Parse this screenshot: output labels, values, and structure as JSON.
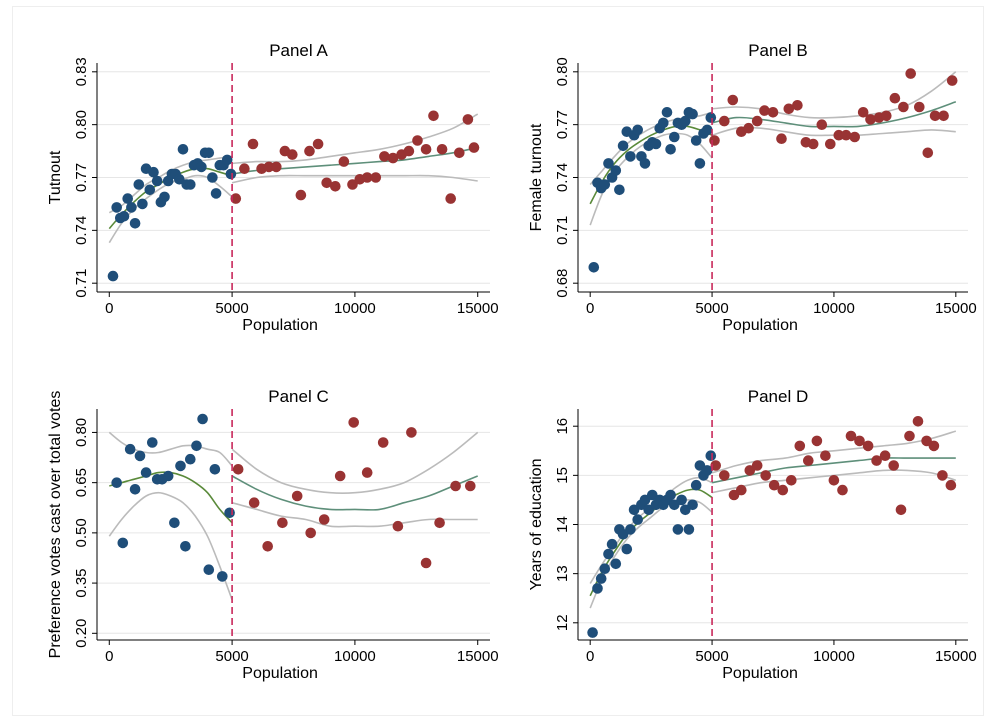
{
  "colors": {
    "below": "#1f4e79",
    "above": "#993333",
    "fit": "#5a8a3a",
    "fit_right": "#5e8f7a",
    "ci": "#bbbbbb",
    "cutoff": "#c8285a",
    "grid": "#e6e6e6"
  },
  "chart_data": [
    {
      "type": "scatter",
      "title": "Panel A",
      "xlabel": "Population",
      "ylabel": "Tutnout",
      "xlim": [
        -500,
        15500
      ],
      "ylim": [
        0.705,
        0.835
      ],
      "xticks": [
        0,
        5000,
        10000,
        15000
      ],
      "xtick_labels": [
        "0",
        "5000",
        "10000",
        "15000"
      ],
      "yticks": [
        0.71,
        0.74,
        0.77,
        0.8,
        0.83
      ],
      "ytick_labels": [
        "0.71",
        "0.74",
        "0.77",
        "0.80",
        "0.83"
      ],
      "cutoff": 5000,
      "grid": true,
      "series": [
        {
          "group": "below",
          "x": [
            150,
            300,
            450,
            600,
            750,
            900,
            1050,
            1200,
            1350,
            1500,
            1650,
            1800,
            1950,
            2100,
            2250,
            2400,
            2550,
            2700,
            2850,
            3000,
            3150,
            3300,
            3450,
            3600,
            3750,
            3900,
            4050,
            4200,
            4350,
            4500,
            4650,
            4800,
            4950
          ],
          "y": [
            0.714,
            0.753,
            0.747,
            0.748,
            0.758,
            0.753,
            0.744,
            0.766,
            0.755,
            0.775,
            0.763,
            0.773,
            0.768,
            0.756,
            0.759,
            0.768,
            0.772,
            0.772,
            0.769,
            0.786,
            0.766,
            0.766,
            0.777,
            0.778,
            0.776,
            0.784,
            0.784,
            0.77,
            0.761,
            0.777,
            0.777,
            0.78,
            0.772
          ]
        },
        {
          "group": "above",
          "x": [
            5150,
            5500,
            5850,
            6200,
            6500,
            6800,
            7150,
            7450,
            7800,
            8150,
            8500,
            8850,
            9200,
            9550,
            9900,
            10200,
            10500,
            10850,
            11200,
            11550,
            11900,
            12200,
            12550,
            12900,
            13200,
            13550,
            13900,
            14250,
            14600,
            14850
          ],
          "y": [
            0.758,
            0.775,
            0.789,
            0.775,
            0.776,
            0.776,
            0.785,
            0.783,
            0.76,
            0.785,
            0.789,
            0.767,
            0.765,
            0.779,
            0.766,
            0.769,
            0.77,
            0.77,
            0.782,
            0.781,
            0.783,
            0.785,
            0.791,
            0.786,
            0.805,
            0.786,
            0.758,
            0.784,
            0.803,
            0.787
          ]
        }
      ],
      "fits": [
        {
          "group": "below",
          "x": [
            0,
            500,
            1000,
            1500,
            2000,
            2500,
            3000,
            3500,
            4000,
            4500,
            5000
          ],
          "y": [
            0.741,
            0.749,
            0.756,
            0.762,
            0.766,
            0.77,
            0.773,
            0.775,
            0.775,
            0.773,
            0.771
          ],
          "lo": [
            0.733,
            0.744,
            0.752,
            0.758,
            0.763,
            0.767,
            0.769,
            0.771,
            0.77,
            0.765,
            0.759
          ],
          "hi": [
            0.75,
            0.754,
            0.76,
            0.766,
            0.77,
            0.774,
            0.777,
            0.779,
            0.78,
            0.781,
            0.782
          ]
        },
        {
          "group": "above",
          "x": [
            5000,
            6000,
            7000,
            8000,
            9000,
            10000,
            11000,
            12000,
            13000,
            14000,
            15000
          ],
          "y": [
            0.772,
            0.774,
            0.775,
            0.776,
            0.777,
            0.778,
            0.779,
            0.78,
            0.782,
            0.784,
            0.787
          ],
          "lo": [
            0.767,
            0.77,
            0.771,
            0.771,
            0.771,
            0.771,
            0.771,
            0.771,
            0.771,
            0.77,
            0.768
          ],
          "hi": [
            0.778,
            0.779,
            0.779,
            0.78,
            0.782,
            0.784,
            0.786,
            0.789,
            0.793,
            0.798,
            0.806
          ]
        }
      ]
    },
    {
      "type": "scatter",
      "title": "Panel B",
      "xlabel": "Population",
      "ylabel": "Female turnout",
      "xlim": [
        -500,
        15500
      ],
      "ylim": [
        0.675,
        0.805
      ],
      "xticks": [
        0,
        5000,
        10000,
        15000
      ],
      "xtick_labels": [
        "0",
        "5000",
        "10000",
        "15000"
      ],
      "yticks": [
        0.68,
        0.71,
        0.74,
        0.77,
        0.8
      ],
      "ytick_labels": [
        "0.68",
        "0.71",
        "0.74",
        "0.77",
        "0.80"
      ],
      "cutoff": 5000,
      "grid": true,
      "series": [
        {
          "group": "below",
          "x": [
            150,
            300,
            450,
            600,
            750,
            900,
            1050,
            1200,
            1350,
            1500,
            1650,
            1800,
            1950,
            2100,
            2250,
            2400,
            2550,
            2700,
            2850,
            3000,
            3150,
            3300,
            3450,
            3600,
            3750,
            3900,
            4050,
            4200,
            4350,
            4500,
            4650,
            4800,
            4950
          ],
          "y": [
            0.689,
            0.737,
            0.734,
            0.736,
            0.748,
            0.74,
            0.744,
            0.733,
            0.758,
            0.766,
            0.752,
            0.764,
            0.767,
            0.752,
            0.748,
            0.758,
            0.76,
            0.759,
            0.768,
            0.771,
            0.777,
            0.756,
            0.763,
            0.771,
            0.77,
            0.772,
            0.777,
            0.776,
            0.761,
            0.748,
            0.765,
            0.767,
            0.774
          ]
        },
        {
          "group": "above",
          "x": [
            5100,
            5500,
            5850,
            6200,
            6500,
            6850,
            7150,
            7500,
            7850,
            8150,
            8500,
            8850,
            9150,
            9500,
            9850,
            10200,
            10500,
            10850,
            11200,
            11500,
            11850,
            12150,
            12500,
            12850,
            13150,
            13500,
            13850,
            14150,
            14500,
            14850
          ],
          "y": [
            0.761,
            0.772,
            0.784,
            0.766,
            0.768,
            0.772,
            0.778,
            0.777,
            0.762,
            0.779,
            0.781,
            0.76,
            0.759,
            0.77,
            0.759,
            0.764,
            0.764,
            0.763,
            0.777,
            0.773,
            0.774,
            0.775,
            0.785,
            0.78,
            0.799,
            0.78,
            0.754,
            0.775,
            0.775,
            0.795
          ]
        }
      ],
      "fits": [
        {
          "group": "below",
          "x": [
            0,
            500,
            1000,
            1500,
            2000,
            2500,
            3000,
            3500,
            4000,
            4500,
            5000
          ],
          "y": [
            0.725,
            0.738,
            0.748,
            0.755,
            0.76,
            0.764,
            0.767,
            0.769,
            0.769,
            0.767,
            0.764
          ],
          "lo": [
            0.713,
            0.731,
            0.743,
            0.751,
            0.757,
            0.761,
            0.764,
            0.765,
            0.764,
            0.759,
            0.751
          ],
          "hi": [
            0.736,
            0.744,
            0.752,
            0.759,
            0.764,
            0.768,
            0.771,
            0.773,
            0.774,
            0.775,
            0.777
          ]
        },
        {
          "group": "above",
          "x": [
            5000,
            6000,
            7000,
            8000,
            9000,
            10000,
            11000,
            12000,
            13000,
            14000,
            15000
          ],
          "y": [
            0.771,
            0.774,
            0.773,
            0.771,
            0.769,
            0.769,
            0.769,
            0.771,
            0.774,
            0.778,
            0.783
          ],
          "lo": [
            0.764,
            0.768,
            0.768,
            0.766,
            0.764,
            0.764,
            0.764,
            0.765,
            0.766,
            0.767,
            0.766
          ],
          "hi": [
            0.779,
            0.78,
            0.779,
            0.776,
            0.774,
            0.774,
            0.775,
            0.777,
            0.781,
            0.789,
            0.8
          ]
        }
      ]
    },
    {
      "type": "scatter",
      "title": "Panel C",
      "xlabel": "Population",
      "ylabel": "Preference votes cast over total votes",
      "xlim": [
        -500,
        15500
      ],
      "ylim": [
        0.18,
        0.87
      ],
      "xticks": [
        0,
        5000,
        10000,
        15000
      ],
      "xtick_labels": [
        "0",
        "5000",
        "10000",
        "15000"
      ],
      "yticks": [
        0.2,
        0.35,
        0.5,
        0.65,
        0.8
      ],
      "ytick_labels": [
        "0.20",
        "0.35",
        "0.50",
        "0.65",
        "0.80"
      ],
      "cutoff": 5000,
      "grid": true,
      "series": [
        {
          "group": "below",
          "x": [
            300,
            550,
            850,
            1050,
            1250,
            1500,
            1750,
            1950,
            2150,
            2400,
            2650,
            2900,
            3100,
            3300,
            3550,
            3800,
            4050,
            4300,
            4600,
            4900
          ],
          "y": [
            0.65,
            0.47,
            0.75,
            0.63,
            0.73,
            0.68,
            0.77,
            0.66,
            0.66,
            0.67,
            0.53,
            0.7,
            0.46,
            0.72,
            0.76,
            0.84,
            0.39,
            0.69,
            0.37,
            0.56
          ]
        },
        {
          "group": "above",
          "x": [
            5250,
            5900,
            6450,
            7050,
            7650,
            8200,
            8750,
            9400,
            9950,
            10500,
            11150,
            11750,
            12300,
            12900,
            13450,
            14100,
            14700
          ],
          "y": [
            0.69,
            0.59,
            0.46,
            0.53,
            0.61,
            0.5,
            0.54,
            0.67,
            0.83,
            0.68,
            0.77,
            0.52,
            0.8,
            0.41,
            0.53,
            0.64,
            0.64
          ]
        }
      ],
      "fits": [
        {
          "group": "below",
          "x": [
            0,
            500,
            1000,
            1500,
            2000,
            2500,
            3000,
            3500,
            4000,
            4500,
            5000
          ],
          "y": [
            0.64,
            0.65,
            0.66,
            0.67,
            0.68,
            0.68,
            0.67,
            0.65,
            0.62,
            0.57,
            0.53
          ],
          "lo": [
            0.49,
            0.54,
            0.58,
            0.61,
            0.62,
            0.61,
            0.59,
            0.55,
            0.49,
            0.4,
            0.3
          ],
          "hi": [
            0.8,
            0.77,
            0.75,
            0.74,
            0.74,
            0.75,
            0.76,
            0.76,
            0.75,
            0.74,
            0.7
          ]
        },
        {
          "group": "above",
          "x": [
            5000,
            6000,
            7000,
            8000,
            9000,
            10000,
            11000,
            12000,
            13000,
            14000,
            15000
          ],
          "y": [
            0.67,
            0.63,
            0.6,
            0.58,
            0.57,
            0.57,
            0.57,
            0.59,
            0.61,
            0.64,
            0.67
          ],
          "lo": [
            0.59,
            0.57,
            0.55,
            0.54,
            0.52,
            0.52,
            0.52,
            0.53,
            0.54,
            0.54,
            0.54
          ],
          "hi": [
            0.75,
            0.69,
            0.65,
            0.63,
            0.62,
            0.62,
            0.63,
            0.65,
            0.69,
            0.74,
            0.8
          ]
        }
      ]
    },
    {
      "type": "scatter",
      "title": "Panel D",
      "xlabel": "Population",
      "ylabel": "Years of education",
      "xlim": [
        -500,
        15500
      ],
      "ylim": [
        11.65,
        16.35
      ],
      "xticks": [
        0,
        5000,
        10000,
        15000
      ],
      "xtick_labels": [
        "0",
        "5000",
        "10000",
        "15000"
      ],
      "yticks": [
        12,
        13,
        14,
        15,
        16
      ],
      "ytick_labels": [
        "12",
        "13",
        "14",
        "15",
        "16"
      ],
      "cutoff": 5000,
      "grid": true,
      "series": [
        {
          "group": "below",
          "x": [
            100,
            300,
            450,
            600,
            750,
            900,
            1050,
            1200,
            1350,
            1500,
            1650,
            1800,
            1950,
            2100,
            2250,
            2400,
            2550,
            2700,
            2850,
            3000,
            3150,
            3300,
            3450,
            3600,
            3750,
            3900,
            4050,
            4200,
            4350,
            4500,
            4650,
            4800,
            4950
          ],
          "y": [
            11.8,
            12.7,
            12.9,
            13.1,
            13.4,
            13.6,
            13.2,
            13.9,
            13.8,
            13.5,
            13.9,
            14.3,
            14.1,
            14.4,
            14.5,
            14.3,
            14.6,
            14.4,
            14.5,
            14.4,
            14.5,
            14.6,
            14.4,
            13.9,
            14.5,
            14.3,
            13.9,
            14.4,
            14.8,
            15.2,
            15.0,
            15.1,
            15.4
          ]
        },
        {
          "group": "above",
          "x": [
            5150,
            5500,
            5900,
            6200,
            6550,
            6850,
            7200,
            7550,
            7900,
            8250,
            8600,
            8950,
            9300,
            9650,
            10000,
            10350,
            10700,
            11050,
            11400,
            11750,
            12100,
            12450,
            12750,
            13100,
            13450,
            13800,
            14100,
            14450,
            14800
          ],
          "y": [
            15.2,
            15.0,
            14.6,
            14.7,
            15.1,
            15.2,
            15.0,
            14.8,
            14.7,
            14.9,
            15.6,
            15.3,
            15.7,
            15.4,
            14.9,
            14.7,
            15.8,
            15.7,
            15.6,
            15.3,
            15.4,
            15.2,
            14.3,
            15.8,
            16.1,
            15.7,
            15.6,
            15.0,
            14.8
          ]
        }
      ],
      "fits": [
        {
          "group": "below",
          "x": [
            0,
            500,
            1000,
            1500,
            2000,
            2500,
            3000,
            3500,
            4000,
            4500,
            5000
          ],
          "y": [
            12.55,
            13.05,
            13.45,
            13.8,
            14.05,
            14.25,
            14.45,
            14.6,
            14.7,
            14.7,
            14.55
          ],
          "lo": [
            12.3,
            12.9,
            13.35,
            13.7,
            13.95,
            14.15,
            14.35,
            14.45,
            14.5,
            14.45,
            14.25
          ],
          "hi": [
            12.8,
            13.2,
            13.55,
            13.9,
            14.15,
            14.35,
            14.55,
            14.75,
            14.9,
            14.95,
            14.85
          ]
        },
        {
          "group": "above",
          "x": [
            5000,
            6000,
            7000,
            8000,
            9000,
            10000,
            11000,
            12000,
            13000,
            14000,
            15000
          ],
          "y": [
            14.85,
            14.95,
            15.05,
            15.15,
            15.2,
            15.25,
            15.3,
            15.35,
            15.35,
            15.35,
            15.35
          ],
          "lo": [
            14.65,
            14.75,
            14.85,
            14.9,
            14.95,
            15.0,
            15.05,
            15.1,
            15.1,
            15.05,
            14.9
          ],
          "hi": [
            15.05,
            15.2,
            15.3,
            15.35,
            15.45,
            15.5,
            15.55,
            15.6,
            15.65,
            15.75,
            15.9
          ]
        }
      ]
    }
  ]
}
